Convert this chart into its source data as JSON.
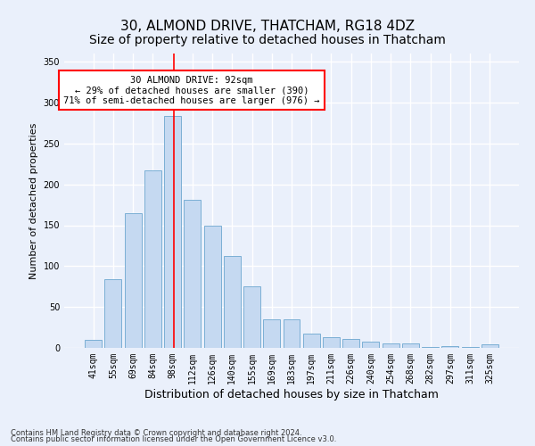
{
  "title": "30, ALMOND DRIVE, THATCHAM, RG18 4DZ",
  "subtitle": "Size of property relative to detached houses in Thatcham",
  "xlabel": "Distribution of detached houses by size in Thatcham",
  "ylabel": "Number of detached properties",
  "categories": [
    "41sqm",
    "55sqm",
    "69sqm",
    "84sqm",
    "98sqm",
    "112sqm",
    "126sqm",
    "140sqm",
    "155sqm",
    "169sqm",
    "183sqm",
    "197sqm",
    "211sqm",
    "226sqm",
    "240sqm",
    "254sqm",
    "268sqm",
    "282sqm",
    "297sqm",
    "311sqm",
    "325sqm"
  ],
  "values": [
    10,
    84,
    165,
    217,
    284,
    181,
    149,
    112,
    75,
    35,
    35,
    17,
    13,
    11,
    8,
    6,
    5,
    1,
    2,
    1,
    4
  ],
  "bar_color": "#c5d9f1",
  "bar_edge_color": "#7BAFD4",
  "property_sqm": 92,
  "annotation_text": "30 ALMOND DRIVE: 92sqm\n← 29% of detached houses are smaller (390)\n71% of semi-detached houses are larger (976) →",
  "annotation_box_color": "white",
  "annotation_box_edge_color": "red",
  "vline_color": "red",
  "ylim": [
    0,
    360
  ],
  "yticks": [
    0,
    50,
    100,
    150,
    200,
    250,
    300,
    350
  ],
  "bg_color": "#eaf0fb",
  "plot_bg_color": "#eaf0fb",
  "grid_color": "white",
  "footer_line1": "Contains HM Land Registry data © Crown copyright and database right 2024.",
  "footer_line2": "Contains public sector information licensed under the Open Government Licence v3.0.",
  "title_fontsize": 11,
  "xlabel_fontsize": 9,
  "ylabel_fontsize": 8,
  "tick_fontsize": 7,
  "annotation_fontsize": 7.5,
  "footer_fontsize": 6
}
